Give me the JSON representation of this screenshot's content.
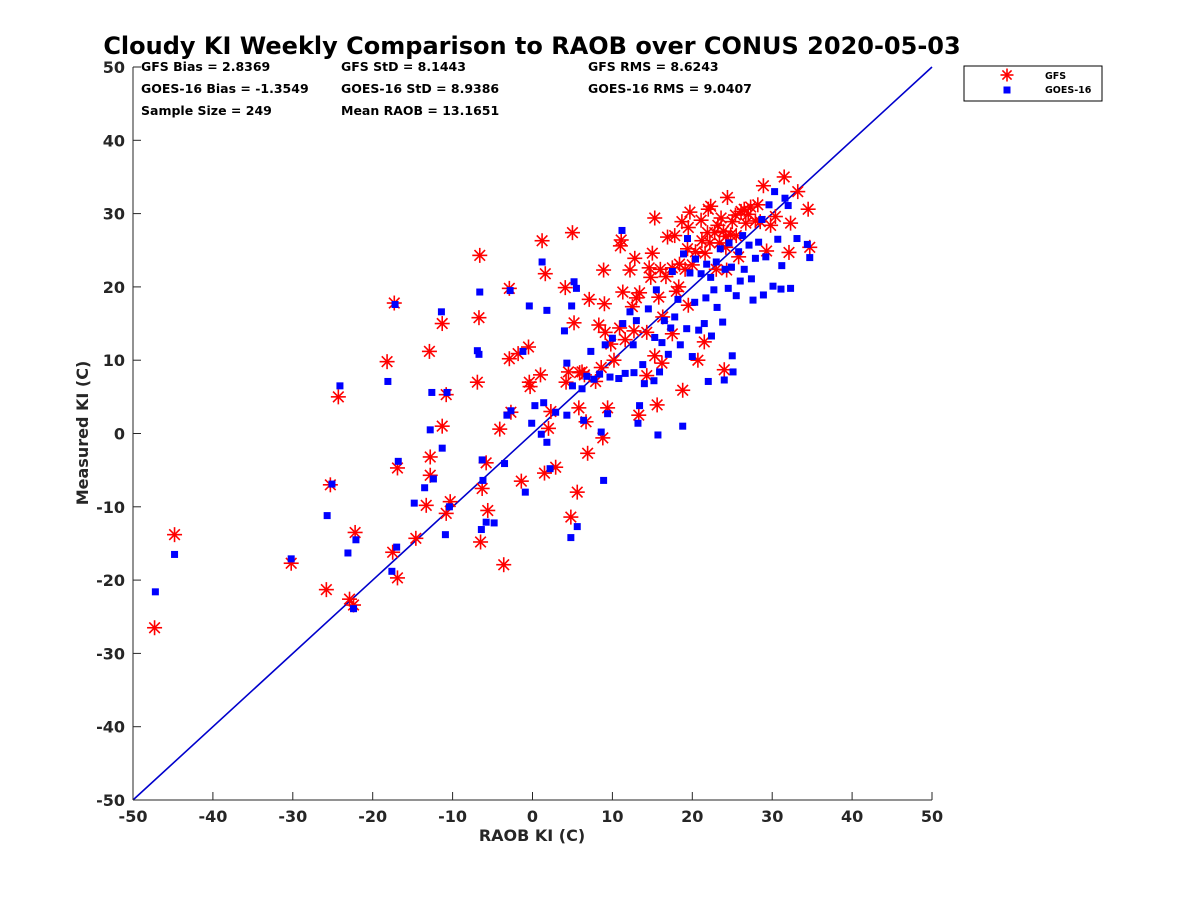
{
  "chart_data": {
    "type": "scatter",
    "title": "Cloudy KI Weekly Comparison to RAOB over CONUS 2020-05-03",
    "xlabel": "RAOB KI (C)",
    "ylabel": "Measured KI (C)",
    "xlim": [
      -50,
      50
    ],
    "ylim": [
      -50,
      50
    ],
    "xticks": [
      "-50",
      "-40",
      "-30",
      "-20",
      "-10",
      "0",
      "10",
      "20",
      "30",
      "40",
      "50"
    ],
    "yticks": [
      "-50",
      "-40",
      "-30",
      "-20",
      "-10",
      "0",
      "10",
      "20",
      "30",
      "40",
      "50"
    ],
    "grid": false,
    "legend_position": "top-right, outside plot",
    "reference_line": {
      "type": "one-to-one",
      "color": "#0000cc"
    },
    "stats": [
      [
        "GFS Bias = 2.8369",
        "GFS StD = 8.1443",
        "GFS RMS = 8.6243"
      ],
      [
        "GOES-16 Bias = -1.3549",
        "GOES-16 StD = 8.9386",
        "GOES-16 RMS = 9.0407"
      ],
      [
        "Sample Size = 249",
        "Mean RAOB = 13.1651",
        ""
      ]
    ],
    "series": [
      {
        "name": "GFS",
        "marker": "asterisk",
        "color": "#ff0000",
        "points": [
          [
            -47.3,
            -26.5
          ],
          [
            -44.8,
            -13.8
          ],
          [
            -30.2,
            -17.7
          ],
          [
            -25.8,
            -21.3
          ],
          [
            -25.3,
            -7.0
          ],
          [
            -24.3,
            5.0
          ],
          [
            -22.9,
            -22.6
          ],
          [
            -22.4,
            -23.4
          ],
          [
            -22.2,
            -13.5
          ],
          [
            -18.2,
            9.8
          ],
          [
            -17.5,
            -16.2
          ],
          [
            -17.3,
            17.8
          ],
          [
            -16.9,
            -19.7
          ],
          [
            -16.9,
            -4.7
          ],
          [
            -14.6,
            -14.3
          ],
          [
            -13.3,
            -9.8
          ],
          [
            -12.9,
            11.2
          ],
          [
            -12.8,
            -5.7
          ],
          [
            -12.8,
            -3.2
          ],
          [
            -11.3,
            15.0
          ],
          [
            -11.3,
            1.0
          ],
          [
            -10.8,
            -10.9
          ],
          [
            -10.8,
            5.3
          ],
          [
            -10.3,
            -9.3
          ],
          [
            -6.7,
            15.8
          ],
          [
            -6.6,
            24.3
          ],
          [
            -6.9,
            7.0
          ],
          [
            -6.5,
            -14.8
          ],
          [
            -6.3,
            -7.5
          ],
          [
            -5.8,
            -4.0
          ],
          [
            -5.6,
            -10.5
          ],
          [
            -4.1,
            0.6
          ],
          [
            -3.6,
            -17.9
          ],
          [
            -2.9,
            10.2
          ],
          [
            -2.7,
            2.9
          ],
          [
            -2.9,
            19.8
          ],
          [
            -1.8,
            10.9
          ],
          [
            -1.4,
            -6.5
          ],
          [
            -0.5,
            11.8
          ],
          [
            -0.4,
            7.0
          ],
          [
            -0.3,
            6.4
          ],
          [
            1.0,
            8.0
          ],
          [
            1.2,
            26.3
          ],
          [
            1.6,
            21.8
          ],
          [
            1.5,
            -5.4
          ],
          [
            2.0,
            0.7
          ],
          [
            2.3,
            3.0
          ],
          [
            2.9,
            -4.6
          ],
          [
            4.1,
            19.9
          ],
          [
            4.2,
            7.0
          ],
          [
            4.5,
            8.4
          ],
          [
            4.8,
            -11.4
          ],
          [
            5.0,
            27.4
          ],
          [
            5.2,
            15.1
          ],
          [
            5.6,
            -8.0
          ],
          [
            5.8,
            3.5
          ],
          [
            5.9,
            8.3
          ],
          [
            6.2,
            8.4
          ],
          [
            6.5,
            8.0
          ],
          [
            6.7,
            1.6
          ],
          [
            6.9,
            -2.7
          ],
          [
            7.1,
            18.3
          ],
          [
            7.9,
            7.1
          ],
          [
            8.3,
            14.8
          ],
          [
            8.6,
            9.0
          ],
          [
            8.8,
            -0.6
          ],
          [
            8.9,
            22.3
          ],
          [
            9.0,
            17.7
          ],
          [
            9.1,
            13.8
          ],
          [
            9.4,
            3.5
          ],
          [
            9.8,
            12.2
          ],
          [
            10.2,
            10.0
          ],
          [
            10.9,
            14.4
          ],
          [
            11.0,
            25.6
          ],
          [
            11.1,
            26.4
          ],
          [
            11.3,
            19.3
          ],
          [
            11.6,
            12.8
          ],
          [
            12.2,
            22.3
          ],
          [
            12.5,
            17.3
          ],
          [
            12.7,
            14.0
          ],
          [
            12.8,
            23.9
          ],
          [
            13.0,
            18.5
          ],
          [
            13.3,
            2.5
          ],
          [
            13.4,
            19.2
          ],
          [
            14.3,
            13.8
          ],
          [
            14.3,
            7.9
          ],
          [
            14.6,
            22.6
          ],
          [
            14.8,
            21.3
          ],
          [
            15.0,
            24.6
          ],
          [
            15.3,
            29.4
          ],
          [
            15.3,
            10.6
          ],
          [
            15.6,
            3.9
          ],
          [
            15.8,
            18.6
          ],
          [
            16.0,
            22.4
          ],
          [
            16.2,
            9.6
          ],
          [
            16.3,
            15.9
          ],
          [
            16.7,
            21.4
          ],
          [
            16.9,
            26.8
          ],
          [
            17.5,
            13.6
          ],
          [
            17.5,
            22.6
          ],
          [
            17.8,
            27.0
          ],
          [
            18.0,
            19.4
          ],
          [
            18.3,
            20.0
          ],
          [
            18.4,
            23.1
          ],
          [
            18.7,
            28.9
          ],
          [
            18.8,
            5.9
          ],
          [
            19.1,
            22.4
          ],
          [
            19.4,
            25.2
          ],
          [
            19.5,
            17.5
          ],
          [
            19.5,
            28.1
          ],
          [
            19.7,
            30.2
          ],
          [
            20.0,
            23.0
          ],
          [
            20.4,
            24.8
          ],
          [
            20.7,
            10.0
          ],
          [
            21.1,
            29.1
          ],
          [
            21.2,
            26.3
          ],
          [
            21.5,
            12.5
          ],
          [
            21.6,
            24.6
          ],
          [
            21.9,
            27.4
          ],
          [
            22.0,
            30.6
          ],
          [
            22.2,
            26.0
          ],
          [
            22.3,
            31.0
          ],
          [
            22.8,
            27.4
          ],
          [
            23.0,
            22.4
          ],
          [
            23.2,
            28.4
          ],
          [
            23.4,
            26.0
          ],
          [
            23.6,
            29.4
          ],
          [
            23.9,
            27.6
          ],
          [
            24.0,
            8.7
          ],
          [
            24.2,
            25.4
          ],
          [
            24.2,
            26.9
          ],
          [
            24.3,
            22.3
          ],
          [
            24.4,
            32.2
          ],
          [
            24.8,
            27.1
          ],
          [
            25.0,
            28.9
          ],
          [
            25.4,
            29.8
          ],
          [
            25.5,
            27.0
          ],
          [
            25.8,
            24.1
          ],
          [
            26.1,
            30.3
          ],
          [
            26.5,
            30.6
          ],
          [
            26.7,
            28.7
          ],
          [
            27.0,
            29.9
          ],
          [
            27.3,
            30.9
          ],
          [
            27.9,
            29.0
          ],
          [
            28.2,
            31.2
          ],
          [
            28.5,
            28.9
          ],
          [
            28.9,
            33.8
          ],
          [
            29.3,
            24.9
          ],
          [
            29.8,
            28.4
          ],
          [
            30.4,
            29.6
          ],
          [
            31.5,
            35.0
          ],
          [
            32.1,
            24.7
          ],
          [
            32.3,
            28.7
          ],
          [
            33.2,
            33.0
          ],
          [
            34.5,
            30.6
          ],
          [
            34.7,
            25.4
          ]
        ]
      },
      {
        "name": "GOES-16",
        "marker": "square",
        "color": "#0000ff",
        "points": [
          [
            -47.2,
            -21.6
          ],
          [
            -44.8,
            -16.5
          ],
          [
            -30.2,
            -17.1
          ],
          [
            -25.7,
            -11.2
          ],
          [
            -25.1,
            -6.9
          ],
          [
            -24.1,
            6.5
          ],
          [
            -23.1,
            -16.3
          ],
          [
            -22.4,
            -23.9
          ],
          [
            -22.1,
            -14.5
          ],
          [
            -18.1,
            7.1
          ],
          [
            -17.6,
            -18.8
          ],
          [
            -17.2,
            17.6
          ],
          [
            -17.0,
            -15.5
          ],
          [
            -16.8,
            -3.8
          ],
          [
            -14.8,
            -9.5
          ],
          [
            -13.5,
            -7.4
          ],
          [
            -12.8,
            0.5
          ],
          [
            -12.6,
            5.6
          ],
          [
            -12.4,
            -6.2
          ],
          [
            -11.4,
            16.6
          ],
          [
            -11.3,
            -2.0
          ],
          [
            -10.9,
            -13.8
          ],
          [
            -10.7,
            5.6
          ],
          [
            -10.4,
            -10.0
          ],
          [
            -6.9,
            11.3
          ],
          [
            -6.6,
            19.3
          ],
          [
            -6.7,
            10.8
          ],
          [
            -6.3,
            -3.6
          ],
          [
            -6.2,
            -6.4
          ],
          [
            -6.4,
            -13.1
          ],
          [
            -5.8,
            -12.1
          ],
          [
            -4.8,
            -12.2
          ],
          [
            -3.5,
            -4.1
          ],
          [
            -3.2,
            2.5
          ],
          [
            -2.8,
            19.5
          ],
          [
            -2.7,
            3.1
          ],
          [
            -1.2,
            11.2
          ],
          [
            -0.9,
            -8.0
          ],
          [
            -0.4,
            17.4
          ],
          [
            -0.1,
            1.4
          ],
          [
            0.3,
            3.8
          ],
          [
            1.1,
            -0.1
          ],
          [
            1.2,
            23.4
          ],
          [
            1.4,
            4.2
          ],
          [
            1.8,
            -1.2
          ],
          [
            1.8,
            16.8
          ],
          [
            2.2,
            -4.8
          ],
          [
            2.9,
            2.9
          ],
          [
            4.0,
            14.0
          ],
          [
            4.3,
            9.6
          ],
          [
            4.3,
            2.5
          ],
          [
            4.8,
            -14.2
          ],
          [
            4.9,
            17.4
          ],
          [
            5.0,
            6.5
          ],
          [
            5.2,
            20.7
          ],
          [
            5.5,
            19.8
          ],
          [
            5.6,
            -12.7
          ],
          [
            6.2,
            6.1
          ],
          [
            6.4,
            1.8
          ],
          [
            6.8,
            7.8
          ],
          [
            7.3,
            11.2
          ],
          [
            7.7,
            7.4
          ],
          [
            8.4,
            8.1
          ],
          [
            8.6,
            0.2
          ],
          [
            8.9,
            -6.4
          ],
          [
            9.1,
            12.1
          ],
          [
            9.4,
            2.7
          ],
          [
            9.7,
            7.7
          ],
          [
            10.0,
            13.0
          ],
          [
            10.8,
            7.5
          ],
          [
            11.2,
            27.7
          ],
          [
            11.3,
            15.0
          ],
          [
            11.6,
            8.2
          ],
          [
            12.2,
            16.6
          ],
          [
            12.6,
            12.1
          ],
          [
            12.7,
            8.3
          ],
          [
            13.0,
            15.4
          ],
          [
            13.2,
            1.4
          ],
          [
            13.4,
            3.8
          ],
          [
            13.8,
            9.4
          ],
          [
            14.0,
            6.8
          ],
          [
            14.5,
            17.0
          ],
          [
            15.2,
            7.2
          ],
          [
            15.3,
            13.1
          ],
          [
            15.5,
            19.6
          ],
          [
            15.7,
            -0.2
          ],
          [
            15.9,
            8.4
          ],
          [
            16.2,
            12.4
          ],
          [
            16.5,
            15.4
          ],
          [
            17.0,
            10.8
          ],
          [
            17.3,
            14.4
          ],
          [
            17.5,
            22.1
          ],
          [
            17.8,
            15.9
          ],
          [
            18.2,
            18.3
          ],
          [
            18.5,
            12.1
          ],
          [
            18.8,
            1.0
          ],
          [
            18.9,
            24.5
          ],
          [
            19.3,
            14.3
          ],
          [
            19.4,
            26.6
          ],
          [
            19.7,
            21.9
          ],
          [
            20.0,
            10.5
          ],
          [
            20.3,
            17.9
          ],
          [
            20.4,
            23.8
          ],
          [
            20.8,
            14.1
          ],
          [
            21.1,
            21.8
          ],
          [
            21.5,
            15.0
          ],
          [
            21.7,
            18.5
          ],
          [
            21.8,
            23.1
          ],
          [
            22.0,
            7.1
          ],
          [
            22.3,
            21.3
          ],
          [
            22.4,
            13.3
          ],
          [
            22.7,
            19.6
          ],
          [
            23.0,
            23.4
          ],
          [
            23.1,
            17.2
          ],
          [
            23.5,
            25.2
          ],
          [
            23.8,
            15.2
          ],
          [
            24.0,
            7.3
          ],
          [
            24.1,
            22.4
          ],
          [
            24.5,
            19.8
          ],
          [
            24.6,
            26.0
          ],
          [
            24.9,
            22.7
          ],
          [
            25.0,
            10.6
          ],
          [
            25.1,
            8.4
          ],
          [
            25.5,
            18.8
          ],
          [
            25.8,
            24.8
          ],
          [
            26.0,
            20.8
          ],
          [
            26.3,
            27.0
          ],
          [
            26.5,
            22.4
          ],
          [
            27.1,
            25.7
          ],
          [
            27.4,
            21.1
          ],
          [
            27.6,
            18.2
          ],
          [
            27.9,
            23.9
          ],
          [
            28.3,
            26.1
          ],
          [
            28.7,
            29.2
          ],
          [
            28.9,
            18.9
          ],
          [
            29.2,
            24.1
          ],
          [
            29.6,
            31.2
          ],
          [
            30.1,
            20.1
          ],
          [
            30.3,
            33.0
          ],
          [
            30.7,
            26.5
          ],
          [
            31.1,
            19.7
          ],
          [
            31.2,
            22.9
          ],
          [
            31.6,
            32.1
          ],
          [
            32.0,
            31.1
          ],
          [
            32.3,
            19.8
          ],
          [
            33.1,
            26.6
          ],
          [
            34.4,
            25.8
          ],
          [
            34.7,
            24.0
          ]
        ]
      }
    ]
  }
}
